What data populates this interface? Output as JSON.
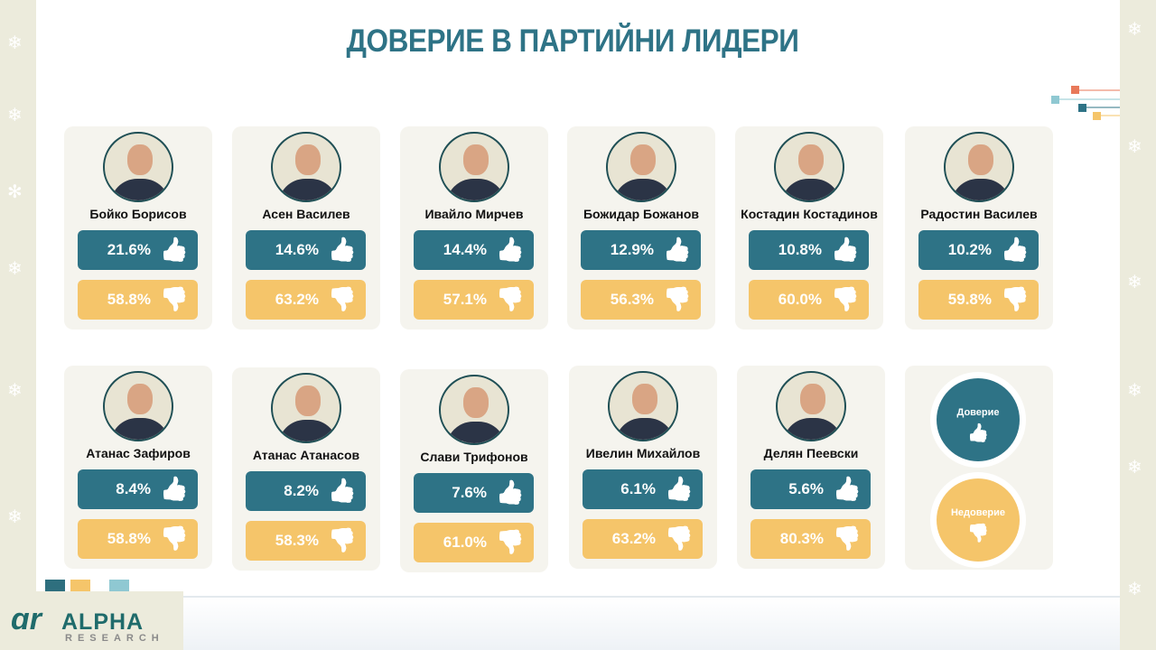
{
  "title": "ДОВЕРИЕ В ПАРТИЙНИ ЛИДЕРИ",
  "colors": {
    "trust": "#2e7386",
    "distrust": "#f5c56a"
  },
  "icons": {
    "trust": "thumbs-up-icon",
    "distrust": "thumbs-down-icon"
  },
  "leaders": [
    {
      "name": "Бойко Борисов",
      "trust": "21.6%",
      "distrust": "58.8%"
    },
    {
      "name": "Асен Василев",
      "trust": "14.6%",
      "distrust": "63.2%"
    },
    {
      "name": "Ивайло Мирчев",
      "trust": "14.4%",
      "distrust": "57.1%"
    },
    {
      "name": "Божидар Божанов",
      "trust": "12.9%",
      "distrust": "56.3%"
    },
    {
      "name": "Костадин Костадинов",
      "trust": "10.8%",
      "distrust": "60.0%"
    },
    {
      "name": "Радостин Василев",
      "trust": "10.2%",
      "distrust": "59.8%"
    },
    {
      "name": "Атанас Зафиров",
      "trust": "8.4%",
      "distrust": "58.8%"
    },
    {
      "name": "Атанас Атанасов",
      "trust": "8.2%",
      "distrust": "58.3%"
    },
    {
      "name": "Слави Трифонов",
      "trust": "7.6%",
      "distrust": "61.0%"
    },
    {
      "name": "Ивелин Михайлов",
      "trust": "6.1%",
      "distrust": "63.2%"
    },
    {
      "name": "Делян Пеевски",
      "trust": "5.6%",
      "distrust": "80.3%"
    }
  ],
  "legend": {
    "trust": "Доверие",
    "distrust": "Недоверие"
  },
  "logo": {
    "name": "ALPHA",
    "sub": "RESEARCH"
  }
}
